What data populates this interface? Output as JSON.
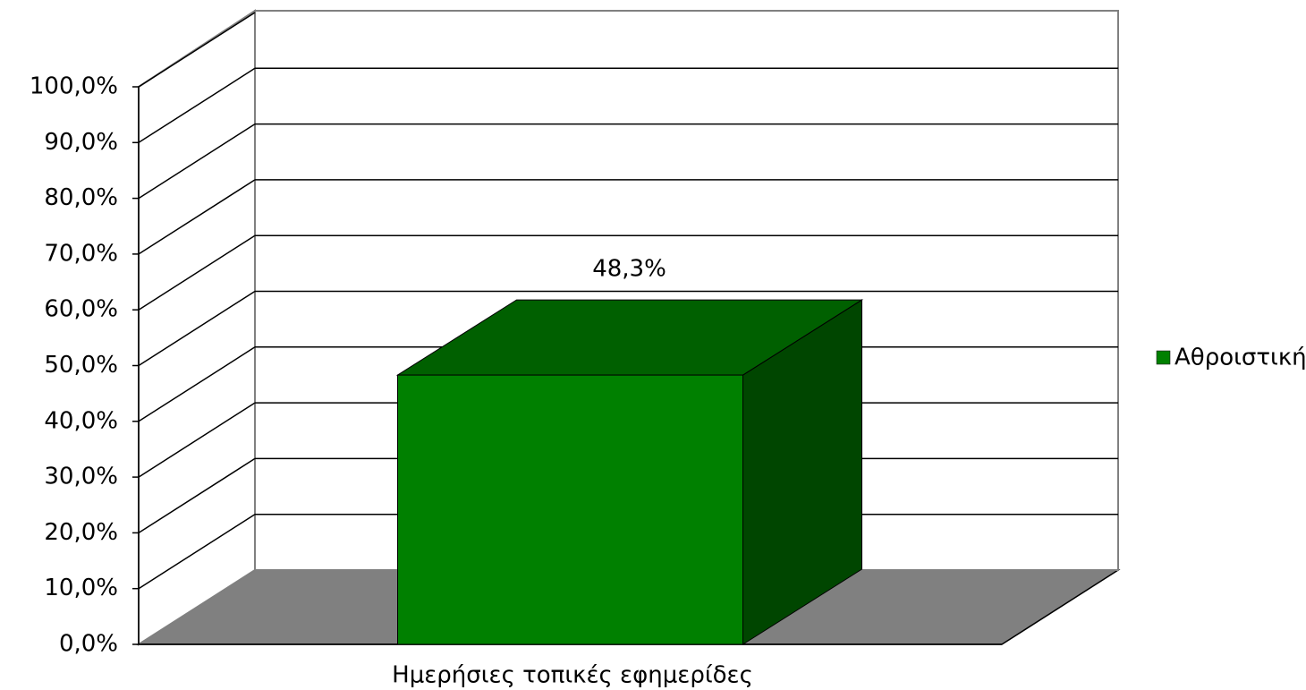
{
  "chart_data": {
    "type": "bar",
    "categories": [
      "Ημερήσιες τοπικές εφημερίδες"
    ],
    "series": [
      {
        "name": "Αθροιστική",
        "color": "#008000",
        "values": [
          48.3
        ],
        "value_labels": [
          "48,3%"
        ]
      }
    ],
    "ylim": [
      0,
      100
    ],
    "yticks": [
      {
        "value": 0,
        "label": "0,0%"
      },
      {
        "value": 10,
        "label": "10,0%"
      },
      {
        "value": 20,
        "label": "20,0%"
      },
      {
        "value": 30,
        "label": "30,0%"
      },
      {
        "value": 40,
        "label": "40,0%"
      },
      {
        "value": 50,
        "label": "50,0%"
      },
      {
        "value": 60,
        "label": "60,0%"
      },
      {
        "value": 70,
        "label": "70,0%"
      },
      {
        "value": 80,
        "label": "80,0%"
      },
      {
        "value": 90,
        "label": "90,0%"
      },
      {
        "value": 100,
        "label": "100,0%"
      }
    ],
    "grid": true,
    "legend": "right"
  }
}
